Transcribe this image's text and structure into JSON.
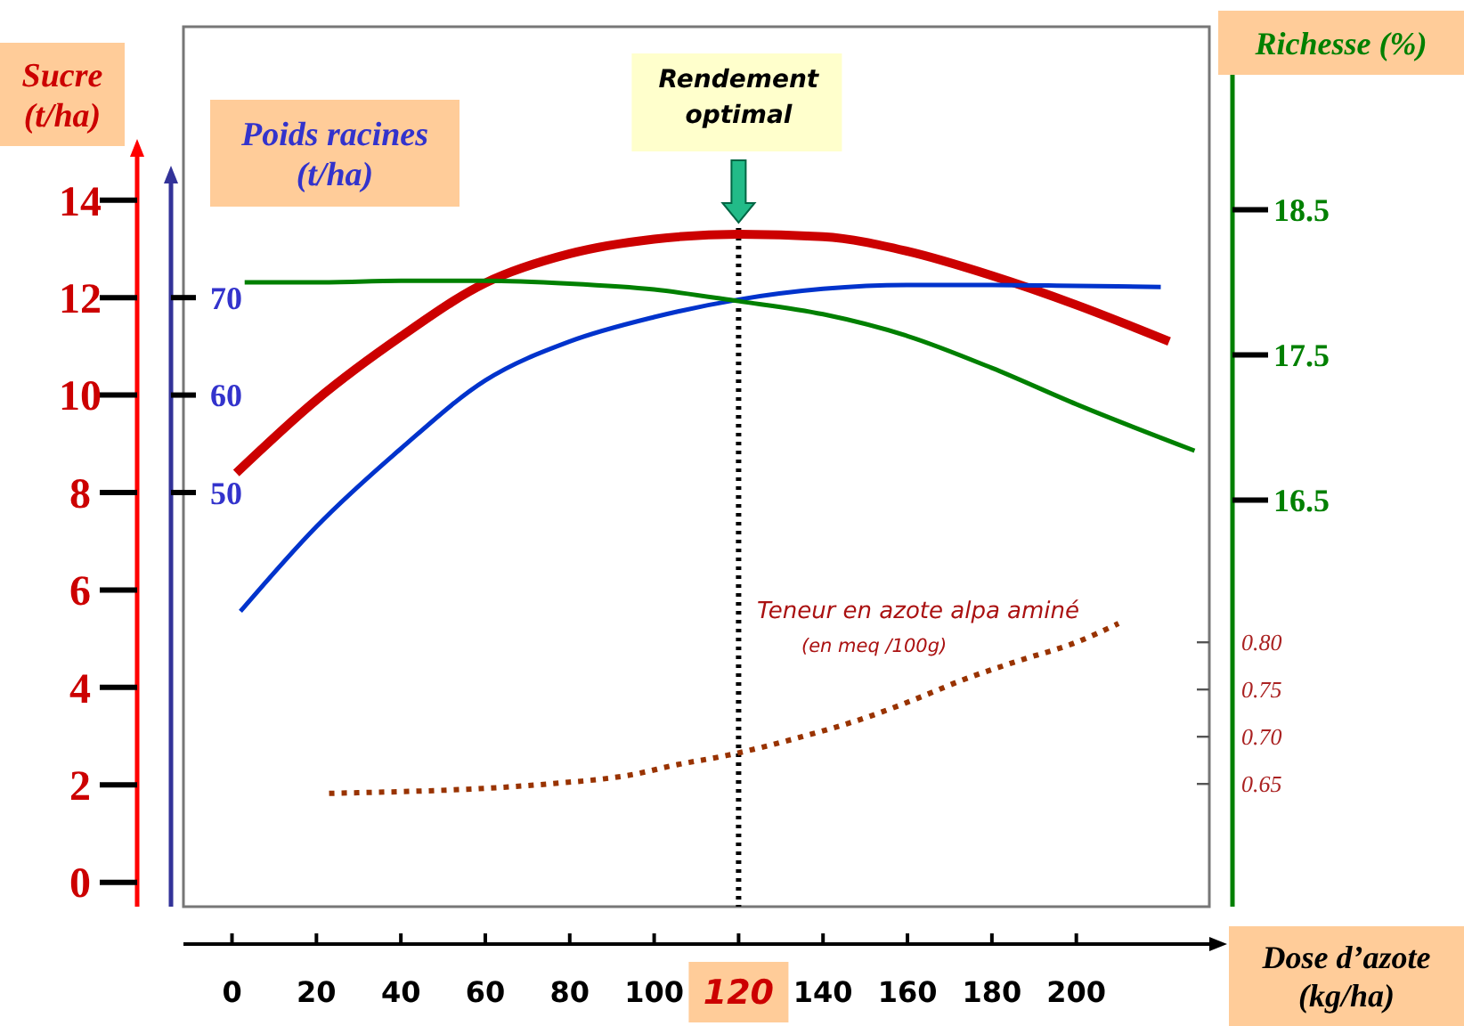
{
  "chart_data": [
    {
      "type": "line",
      "xlabel": "Dose d’azote (kg/ha)",
      "ylabel": "Sucre (t/ha)",
      "y2label": "Poids racines (t/ha)",
      "y3label": "Richesse (%)",
      "xlim": [
        -11.5,
        231.5
      ],
      "xticks": [
        0,
        20,
        40,
        60,
        80,
        100,
        120,
        140,
        160,
        180,
        200
      ],
      "ylim": [
        -0.5,
        17.56
      ],
      "yticks": [
        0,
        2,
        4,
        6,
        8,
        10,
        12,
        14
      ],
      "y2lim": [
        7.5,
        97.8
      ],
      "y2ticks": [
        50,
        60,
        70
      ],
      "y3lim": [
        13.7,
        19.76
      ],
      "y3ticks": [
        16.5,
        17.5,
        18.5
      ],
      "marker": "none",
      "ref_lines": [
        {
          "axis": "x",
          "value": 120,
          "label": "Rendement optimal",
          "color": "#000000",
          "line_style": "dotted"
        }
      ],
      "series": [
        {
          "axis": "y",
          "color": "#cc0000",
          "line_style": "solid",
          "x": [
            1,
            20,
            40,
            60,
            80,
            100,
            120,
            140,
            160,
            180,
            200,
            222
          ],
          "values": [
            8.4,
            9.9,
            11.2,
            12.3,
            12.9,
            13.2,
            13.3,
            13.25,
            12.95,
            12.45,
            11.85,
            11.1
          ]
        },
        {
          "axis": "y2",
          "color": "#0033cc",
          "line_style": "solid",
          "x": [
            2,
            20,
            40,
            60,
            80,
            100,
            120,
            140,
            160,
            180,
            200,
            220
          ],
          "values": [
            37.8,
            46.5,
            54.5,
            61.5,
            65.5,
            68,
            69.8,
            70.9,
            71.3,
            71.3,
            71.2,
            71.1
          ]
        },
        {
          "axis": "y3",
          "color": "#008000",
          "line_style": "solid",
          "x": [
            3,
            20,
            40,
            60,
            80,
            100,
            120,
            140,
            160,
            180,
            200,
            228
          ],
          "values": [
            18.0,
            18.0,
            18.01,
            18.01,
            17.99,
            17.95,
            17.87,
            17.78,
            17.63,
            17.41,
            17.16,
            16.84
          ]
        }
      ]
    },
    {
      "type": "line",
      "ylabel": "Teneur en azote alpa aminé\n(en meq /100g)",
      "xlim": [
        -11.5,
        231.5
      ],
      "ylim": [
        0.52,
        1.452
      ],
      "yticks": [
        {
          "value": 0.8,
          "label": "0.80"
        },
        {
          "value": 0.75,
          "label": "0.75"
        },
        {
          "value": 0.7,
          "label": "0.70"
        },
        {
          "value": 0.65,
          "label": "0.65"
        }
      ],
      "tick_labels": "y",
      "marker": "none",
      "series": [
        {
          "color": "#993300",
          "line_style": "dotted",
          "x": [
            23,
            75,
            95,
            105,
            117,
            135,
            150,
            162,
            173,
            186,
            200,
            210
          ],
          "values": [
            0.64,
            0.65,
            0.66,
            0.67,
            0.68,
            0.7,
            0.72,
            0.74,
            0.76,
            0.78,
            0.8,
            0.82
          ]
        }
      ]
    }
  ]
}
